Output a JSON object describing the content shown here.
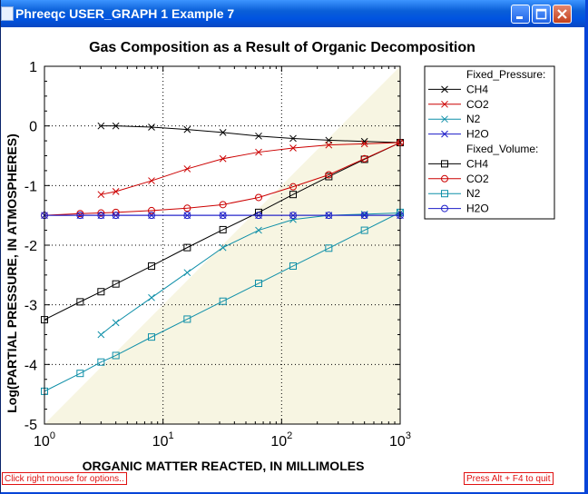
{
  "window": {
    "title": "Phreeqc USER_GRAPH 1 Example 7"
  },
  "status": {
    "left": "Click right mouse for options..",
    "right": "Press Alt + F4 to quit"
  },
  "chart_data": {
    "type": "line",
    "title": "Gas Composition as a Result of Organic Decomposition",
    "xlabel": "ORGANIC MATTER REACTED, IN MILLIMOLES",
    "ylabel": "Log(PARTIAL PRESSURE, IN ATMOSPHERES)",
    "x_scale": "log",
    "xlim": [
      1,
      1000
    ],
    "ylim": [
      -5,
      1
    ],
    "x_ticks": [
      {
        "base": "10",
        "exp": "0",
        "value": 1
      },
      {
        "base": "10",
        "exp": "1",
        "value": 10
      },
      {
        "base": "10",
        "exp": "2",
        "value": 100
      },
      {
        "base": "10",
        "exp": "3",
        "value": 1000
      }
    ],
    "y_ticks": [
      {
        "label": "1",
        "value": 1
      },
      {
        "label": "0",
        "value": 0
      },
      {
        "label": "-1",
        "value": -1
      },
      {
        "label": "-2",
        "value": -2
      },
      {
        "label": "-3",
        "value": -3
      },
      {
        "label": "-4",
        "value": -4
      },
      {
        "label": "-5",
        "value": -5
      }
    ],
    "grid": "dotted",
    "legend_position": "right",
    "legend_groups": [
      {
        "header": "Fixed_Pressure:",
        "series": [
          0,
          1,
          2,
          3
        ]
      },
      {
        "header": "Fixed_Volume:",
        "series": [
          4,
          5,
          6,
          7
        ]
      }
    ],
    "series": [
      {
        "name": "CH4",
        "color": "#000000",
        "marker": "x",
        "x": [
          3,
          4,
          8,
          16,
          32,
          64,
          125,
          250,
          500,
          1000
        ],
        "y": [
          0.0,
          0.0,
          -0.02,
          -0.06,
          -0.11,
          -0.17,
          -0.21,
          -0.24,
          -0.26,
          -0.28
        ]
      },
      {
        "name": "CO2",
        "color": "#cc0000",
        "marker": "x",
        "x": [
          3,
          4,
          8,
          16,
          32,
          64,
          125,
          250,
          500,
          1000
        ],
        "y": [
          -1.15,
          -1.1,
          -0.92,
          -0.72,
          -0.55,
          -0.44,
          -0.37,
          -0.32,
          -0.3,
          -0.28
        ]
      },
      {
        "name": "N2",
        "color": "#0e8fa8",
        "marker": "x",
        "x": [
          3,
          4,
          8,
          16,
          32,
          64,
          125,
          250,
          500,
          1000
        ],
        "y": [
          -3.5,
          -3.3,
          -2.88,
          -2.46,
          -2.04,
          -1.75,
          -1.57,
          -1.5,
          -1.48,
          -1.46
        ]
      },
      {
        "name": "H2O",
        "color": "#1c1cc8",
        "marker": "x",
        "x": [
          1,
          2,
          3,
          4,
          8,
          16,
          32,
          64,
          125,
          250,
          500,
          1000
        ],
        "y": [
          -1.5,
          -1.5,
          -1.5,
          -1.5,
          -1.5,
          -1.5,
          -1.5,
          -1.5,
          -1.5,
          -1.5,
          -1.5,
          -1.5
        ]
      },
      {
        "name": "CH4",
        "color": "#000000",
        "marker": "square",
        "x": [
          1,
          2,
          3,
          4,
          8,
          16,
          32,
          64,
          125,
          250,
          500,
          1000
        ],
        "y": [
          -3.25,
          -2.95,
          -2.78,
          -2.65,
          -2.35,
          -2.04,
          -1.74,
          -1.45,
          -1.15,
          -0.85,
          -0.56,
          -0.28
        ]
      },
      {
        "name": "CO2",
        "color": "#cc0000",
        "marker": "circle",
        "x": [
          1,
          2,
          3,
          4,
          8,
          16,
          32,
          64,
          125,
          250,
          500,
          1000
        ],
        "y": [
          -1.5,
          -1.47,
          -1.46,
          -1.45,
          -1.42,
          -1.38,
          -1.32,
          -1.2,
          -1.02,
          -0.82,
          -0.55,
          -0.28
        ]
      },
      {
        "name": "N2",
        "color": "#0e8fa8",
        "marker": "square",
        "x": [
          1,
          2,
          3,
          4,
          8,
          16,
          32,
          64,
          125,
          250,
          500,
          1000
        ],
        "y": [
          -4.45,
          -4.15,
          -3.96,
          -3.85,
          -3.54,
          -3.24,
          -2.94,
          -2.64,
          -2.35,
          -2.05,
          -1.75,
          -1.45
        ]
      },
      {
        "name": "H2O",
        "color": "#1c1cc8",
        "marker": "circle",
        "x": [
          1,
          2,
          3,
          4,
          8,
          16,
          32,
          64,
          125,
          250,
          500,
          1000
        ],
        "y": [
          -1.5,
          -1.5,
          -1.5,
          -1.5,
          -1.5,
          -1.5,
          -1.5,
          -1.5,
          -1.5,
          -1.5,
          -1.5,
          -1.5
        ]
      }
    ]
  }
}
